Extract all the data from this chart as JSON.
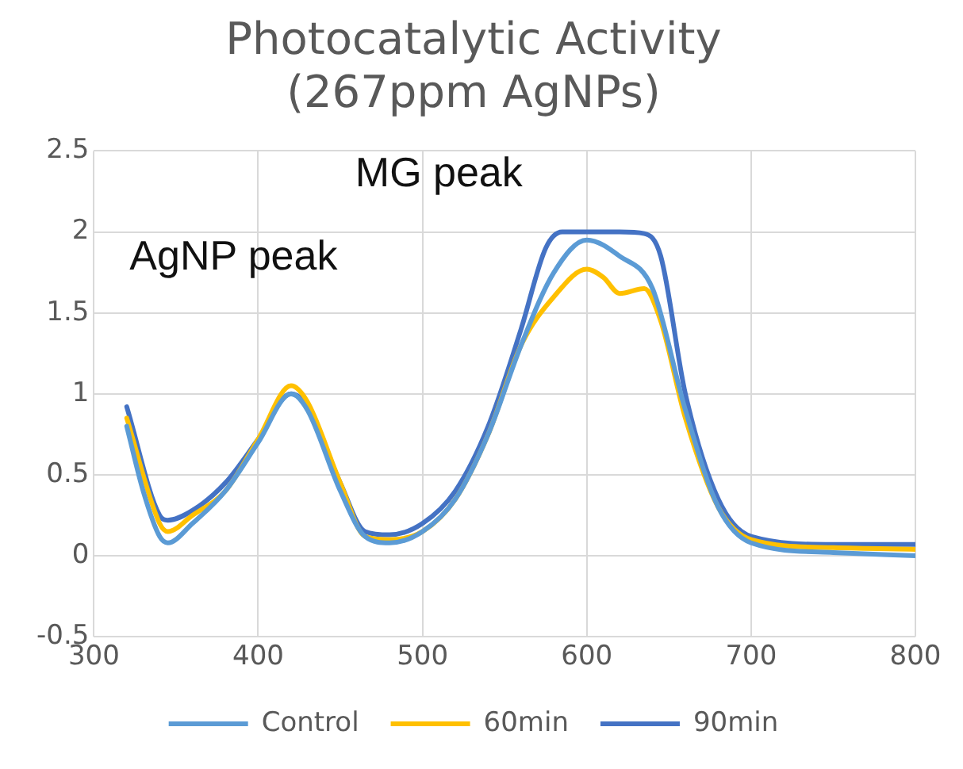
{
  "chart_data": {
    "type": "line",
    "title": [
      "Photocatalytic Activity",
      "(267ppm AgNPs)"
    ],
    "xlim": [
      300,
      800
    ],
    "xticks": [
      300,
      400,
      500,
      600,
      700,
      800
    ],
    "ylim": [
      -0.5,
      2.5
    ],
    "yticks": [
      -0.5,
      0,
      0.5,
      1,
      1.5,
      2,
      2.5
    ],
    "grid": true,
    "legend": "bottom",
    "marker": "none",
    "line_style": "solid",
    "annotations": [
      "AgNP peak",
      "MG peak"
    ],
    "series": [
      {
        "name": "Control",
        "color": "#5b9bd5",
        "x": [
          320,
          330,
          340,
          345,
          360,
          380,
          400,
          420,
          430,
          450,
          465,
          480,
          500,
          520,
          540,
          560,
          580,
          600,
          620,
          640,
          660,
          680,
          700,
          750,
          800
        ],
        "values": [
          0.8,
          0.4,
          0.12,
          0.08,
          0.2,
          0.4,
          0.7,
          1.0,
          0.9,
          0.4,
          0.12,
          0.08,
          0.15,
          0.35,
          0.75,
          1.3,
          1.75,
          1.95,
          1.85,
          1.65,
          0.9,
          0.3,
          0.08,
          0.02,
          0.0
        ]
      },
      {
        "name": "60min",
        "color": "#ffc000",
        "x": [
          320,
          340,
          345,
          360,
          380,
          400,
          420,
          430,
          450,
          465,
          480,
          500,
          520,
          540,
          560,
          580,
          600,
          610,
          620,
          635,
          645,
          660,
          680,
          700,
          750,
          800
        ],
        "values": [
          0.85,
          0.2,
          0.15,
          0.25,
          0.4,
          0.72,
          1.05,
          0.95,
          0.45,
          0.12,
          0.1,
          0.15,
          0.35,
          0.75,
          1.3,
          1.6,
          1.77,
          1.72,
          1.62,
          1.65,
          1.45,
          0.85,
          0.3,
          0.1,
          0.05,
          0.04
        ]
      },
      {
        "name": "90min",
        "color": "#4472c4",
        "x": [
          320,
          340,
          345,
          360,
          380,
          400,
          420,
          430,
          450,
          465,
          480,
          500,
          520,
          540,
          560,
          575,
          585,
          600,
          620,
          635,
          645,
          660,
          680,
          700,
          750,
          800
        ],
        "values": [
          0.92,
          0.25,
          0.22,
          0.28,
          0.45,
          0.72,
          1.0,
          0.92,
          0.45,
          0.15,
          0.13,
          0.2,
          0.4,
          0.8,
          1.4,
          1.9,
          2.0,
          2.0,
          2.0,
          1.99,
          1.85,
          1.0,
          0.35,
          0.12,
          0.07,
          0.07
        ]
      }
    ]
  }
}
